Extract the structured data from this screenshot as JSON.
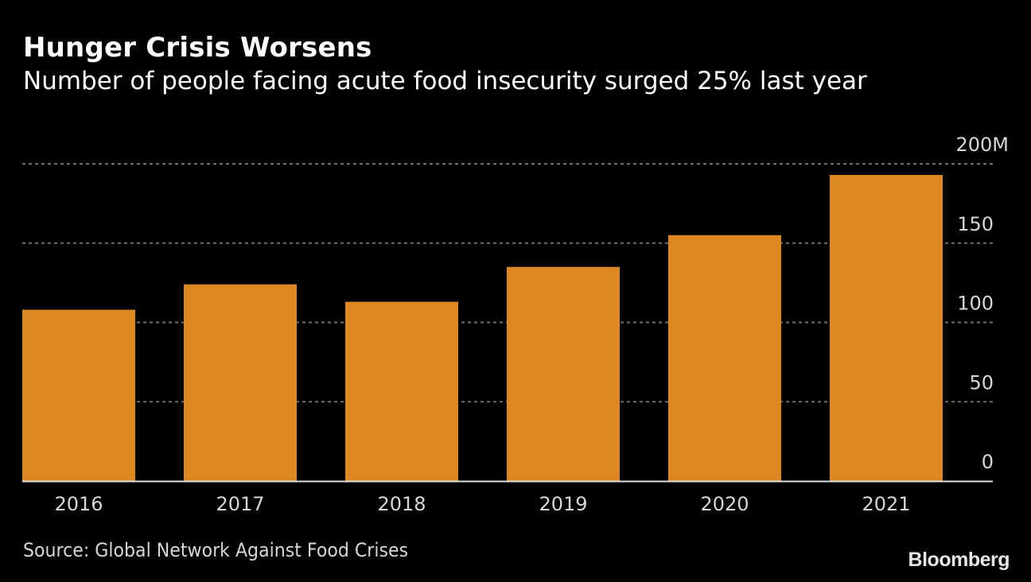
{
  "header": {
    "title": "Hunger Crisis Worsens",
    "subtitle": "Number of people facing acute food insecurity surged 25% last year"
  },
  "footer": {
    "source": "Source: Global Network Against Food Crises",
    "brand": "Bloomberg"
  },
  "colors": {
    "bar": "#dc8924",
    "background": "#000000",
    "grid": "#6e6e6e",
    "text": "#d6d6d6"
  },
  "chart_data": {
    "type": "bar",
    "title": "Hunger Crisis Worsens",
    "subtitle": "Number of people facing acute food insecurity surged 25% last year",
    "categories": [
      "2016",
      "2017",
      "2018",
      "2019",
      "2020",
      "2021"
    ],
    "values": [
      108,
      124,
      113,
      135,
      155,
      193
    ],
    "unit": "M",
    "xlabel": "",
    "ylabel": "",
    "ylim": [
      0,
      200
    ],
    "yticks": [
      0,
      50,
      100,
      150,
      200
    ],
    "ytick_labels": [
      "0",
      "50",
      "100",
      "150",
      "200M"
    ],
    "y_axis_position": "right",
    "grid": true,
    "grid_style": "dotted",
    "source": "Source: Global Network Against Food Crises"
  }
}
